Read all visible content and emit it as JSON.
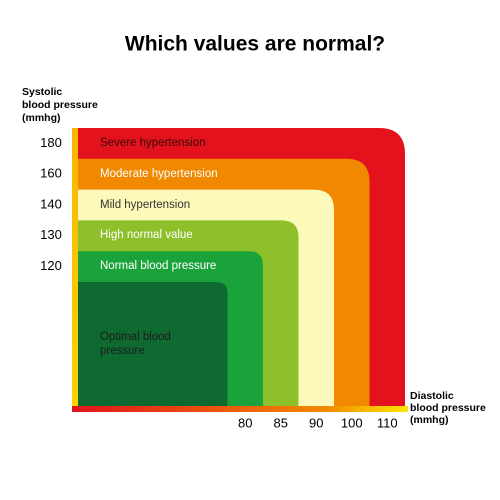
{
  "chart_data": {
    "type": "zones",
    "title": "Which values are normal?",
    "ylabel": [
      "Systolic",
      "blood pressure",
      "(mmhg)"
    ],
    "xlabel": [
      "Diastolic",
      "blood pressure",
      "(mmhg)"
    ],
    "categories": [
      "Severe hypertension",
      "Moderate hypertension",
      "Mild hypertension",
      "High normal value",
      "Normal blood pressure",
      "Optimal blood pressure"
    ],
    "systolic": [
      180,
      160,
      140,
      130,
      120,
      null
    ],
    "diastolic": [
      110,
      100,
      90,
      85,
      80,
      null
    ],
    "colors": [
      "#e3121d",
      "#f08800",
      "#fdf9ba",
      "#8dc02b",
      "#1ba33b",
      "#0e6a30"
    ]
  }
}
